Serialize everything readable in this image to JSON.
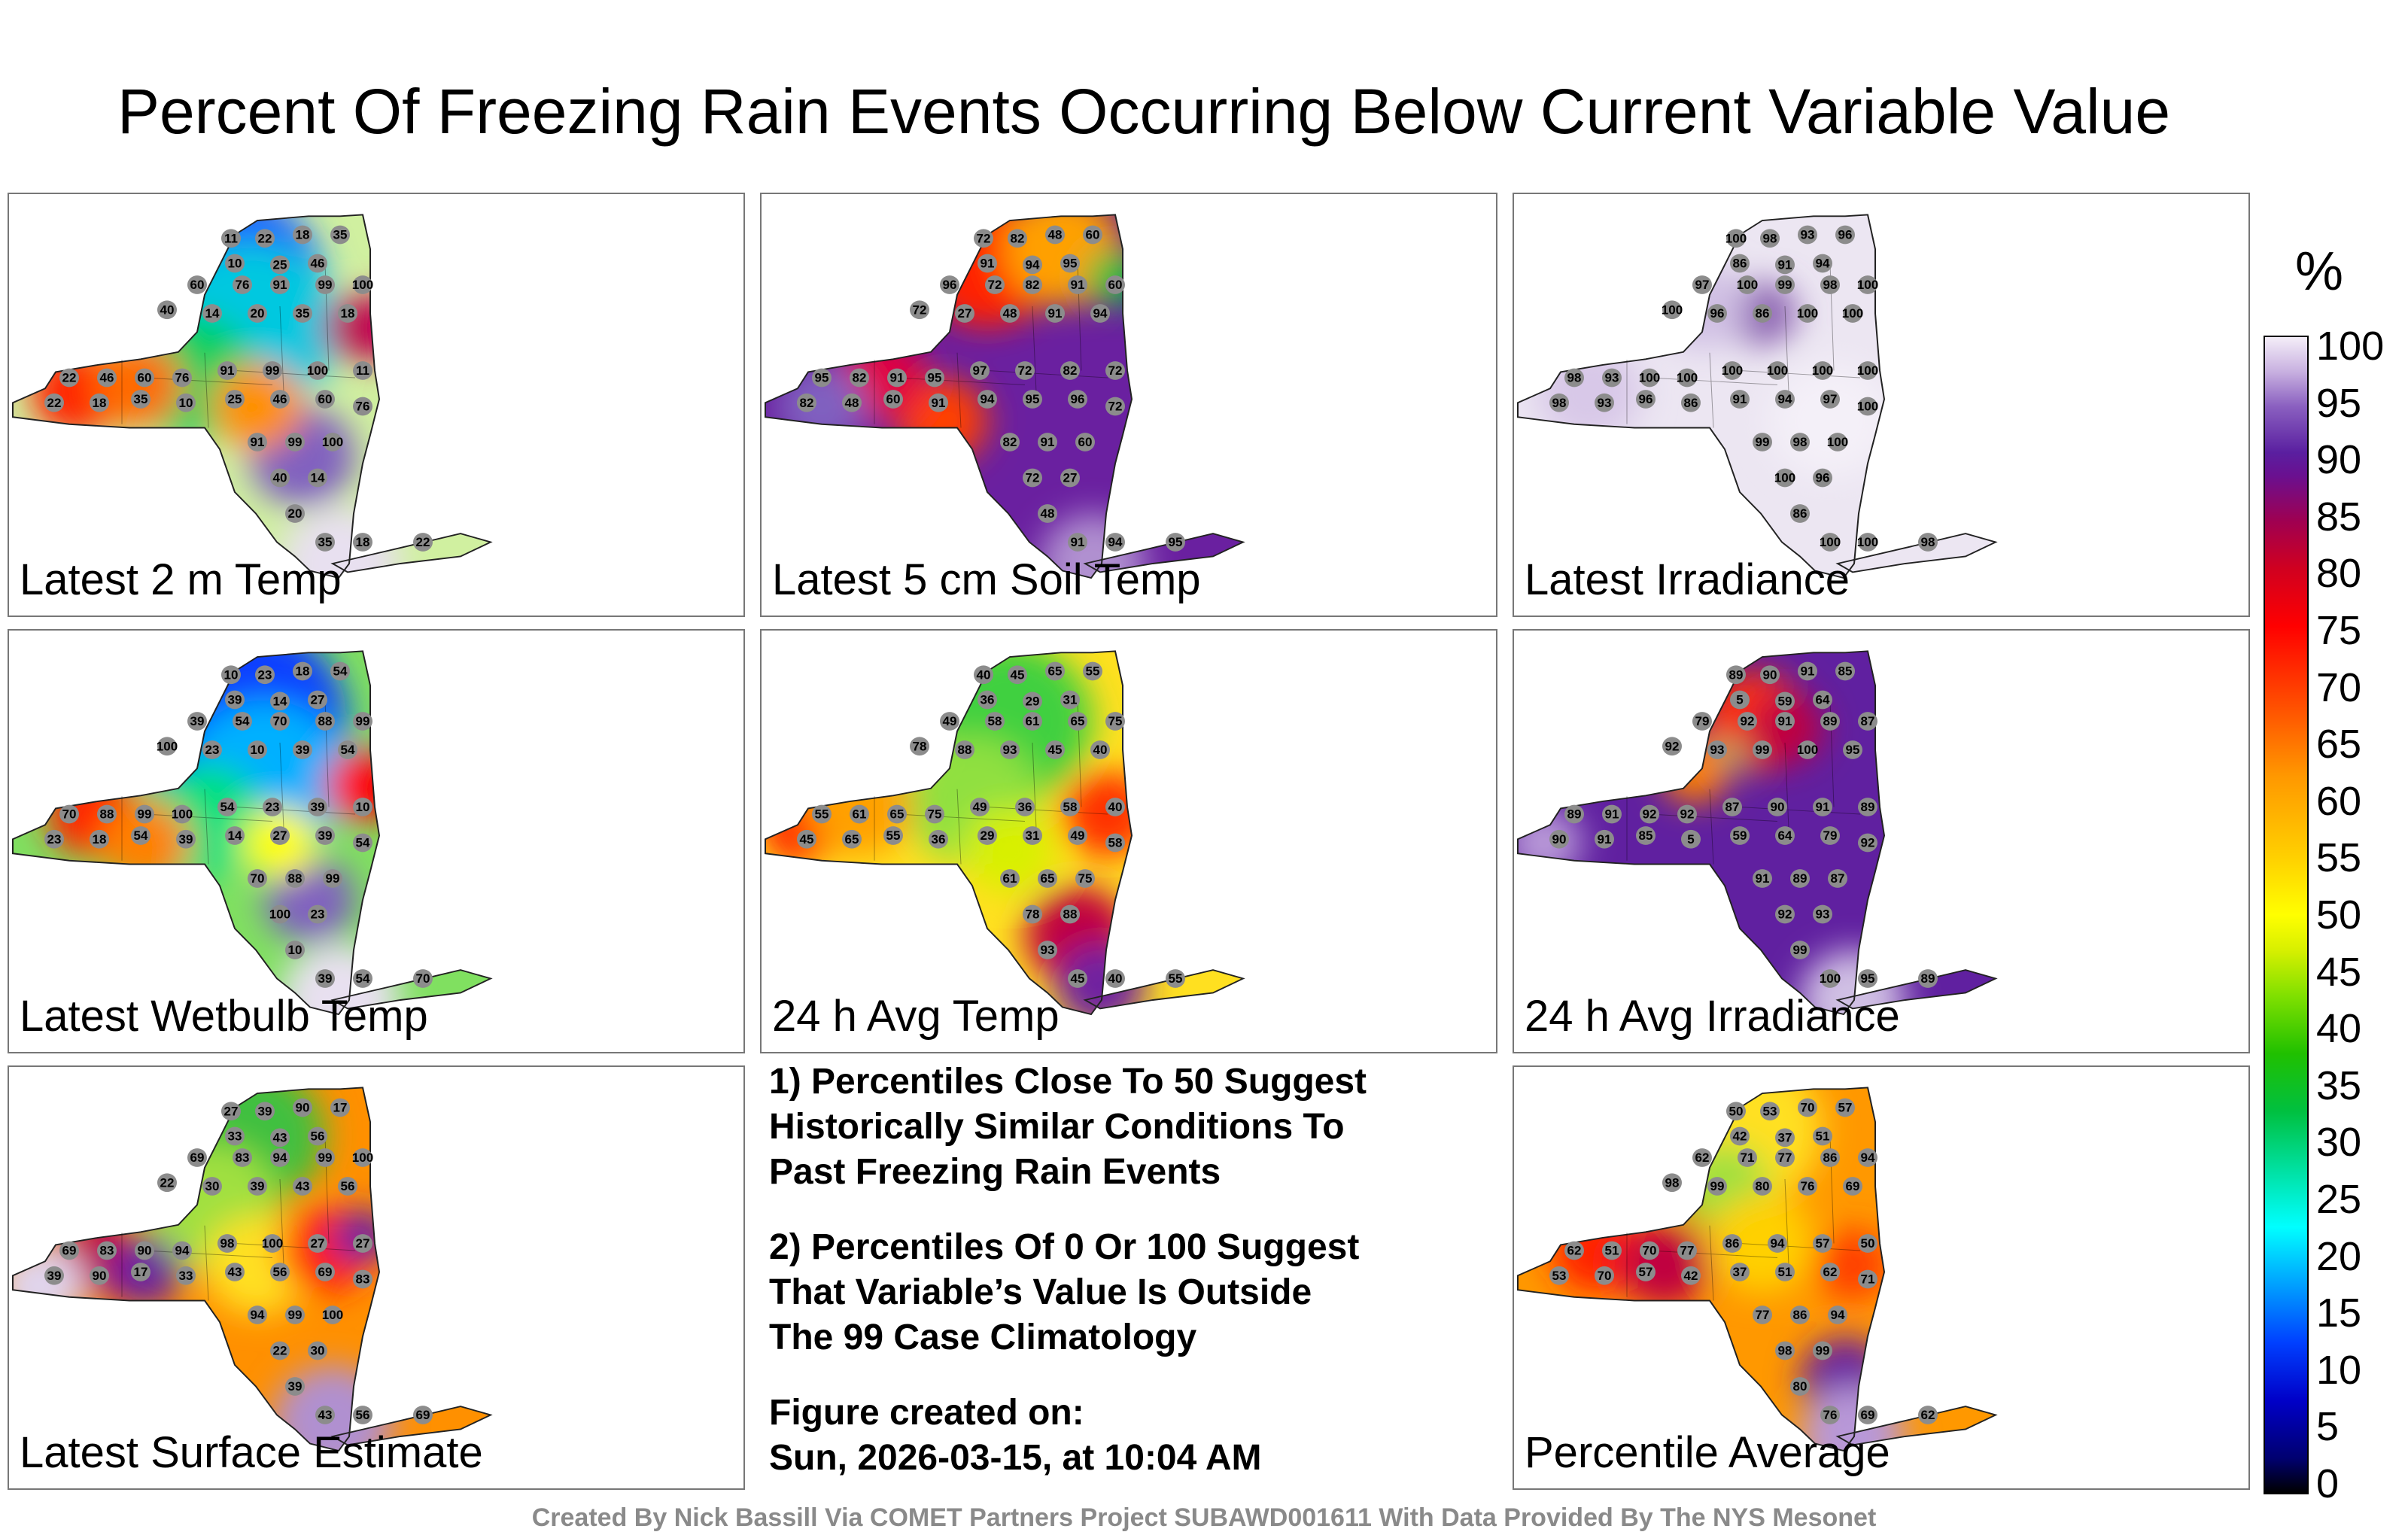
{
  "title": "Percent Of Freezing Rain Events Occurring Below Current Variable Value",
  "colorbar": {
    "unit": "%",
    "ticks": [
      "100",
      "95",
      "90",
      "85",
      "80",
      "75",
      "70",
      "65",
      "60",
      "55",
      "50",
      "45",
      "40",
      "35",
      "30",
      "25",
      "20",
      "15",
      "10",
      "5",
      "0"
    ]
  },
  "panels": [
    {
      "label": "Latest 2 m Temp",
      "theme": "mixed",
      "stations": [
        "11",
        "22",
        "18",
        "35",
        "10",
        "25",
        "46",
        "60",
        "76",
        "91",
        "99",
        "100",
        "40",
        "14",
        "20",
        "35",
        "18",
        "22",
        "46",
        "60",
        "76",
        "91",
        "99",
        "100"
      ]
    },
    {
      "label": "Latest 5 cm Soil Temp",
      "theme": "purple",
      "stations": [
        "72",
        "82",
        "48",
        "60",
        "91",
        "94",
        "95",
        "96",
        "72",
        "82",
        "91",
        "60",
        "72",
        "27",
        "48",
        "91",
        "94",
        "95",
        "82",
        "91",
        "95",
        "97",
        "72",
        "82"
      ]
    },
    {
      "label": "Latest Irradiance",
      "theme": "light",
      "stations": [
        "100",
        "98",
        "93",
        "96",
        "86",
        "91",
        "94",
        "97",
        "100",
        "99",
        "98",
        "100",
        "100",
        "96",
        "86",
        "100",
        "100",
        "98",
        "93",
        "100",
        "100",
        "100",
        "100",
        "100"
      ]
    },
    {
      "label": "Latest Wetbulb Temp",
      "theme": "blue",
      "stations": [
        "10",
        "23",
        "18",
        "54",
        "39",
        "14",
        "27",
        "39",
        "54",
        "70",
        "88",
        "99",
        "100",
        "23",
        "10",
        "39",
        "54",
        "70",
        "88",
        "99",
        "100",
        "54",
        "23",
        "39"
      ]
    },
    {
      "label": "24 h Avg Temp",
      "theme": "yellow",
      "stations": [
        "40",
        "45",
        "65",
        "55",
        "36",
        "29",
        "31",
        "49",
        "58",
        "61",
        "65",
        "75",
        "78",
        "88",
        "93",
        "45",
        "40",
        "55",
        "61",
        "65",
        "75",
        "49",
        "36",
        "58"
      ]
    },
    {
      "label": "24 h Avg Irradiance",
      "theme": "purpleb",
      "stations": [
        "89",
        "90",
        "91",
        "85",
        "5",
        "59",
        "64",
        "79",
        "92",
        "91",
        "89",
        "87",
        "92",
        "93",
        "99",
        "100",
        "95",
        "89",
        "91",
        "92",
        "92",
        "87",
        "90",
        "91"
      ]
    },
    {
      "label": "Latest Surface Estimate",
      "theme": "orangeg",
      "stations": [
        "27",
        "39",
        "90",
        "17",
        "33",
        "43",
        "56",
        "69",
        "83",
        "94",
        "99",
        "100",
        "22",
        "30",
        "39",
        "43",
        "56",
        "69",
        "83",
        "90",
        "94",
        "98",
        "100",
        "27"
      ]
    },
    {
      "label": "Percentile Average",
      "theme": "orangey",
      "stations": [
        "50",
        "53",
        "70",
        "57",
        "42",
        "37",
        "51",
        "62",
        "71",
        "77",
        "86",
        "94",
        "98",
        "99",
        "80",
        "76",
        "69",
        "62",
        "51",
        "70",
        "77",
        "86",
        "94",
        "57"
      ]
    }
  ],
  "notes": {
    "note1": [
      "1) Percentiles Close To 50 Suggest",
      "Historically Similar Conditions To",
      "Past Freezing Rain Events"
    ],
    "note2": [
      "2) Percentiles Of 0 Or 100 Suggest",
      "That Variable’s Value Is Outside",
      "The 99 Case Climatology"
    ],
    "created": [
      "Figure created on:",
      "Sun, 2026-03-15, at 10:04 AM"
    ]
  },
  "credit": "Created By Nick Bassill Via COMET Partners Project SUBAWD001611 With Data Provided By The NYS Mesonet"
}
